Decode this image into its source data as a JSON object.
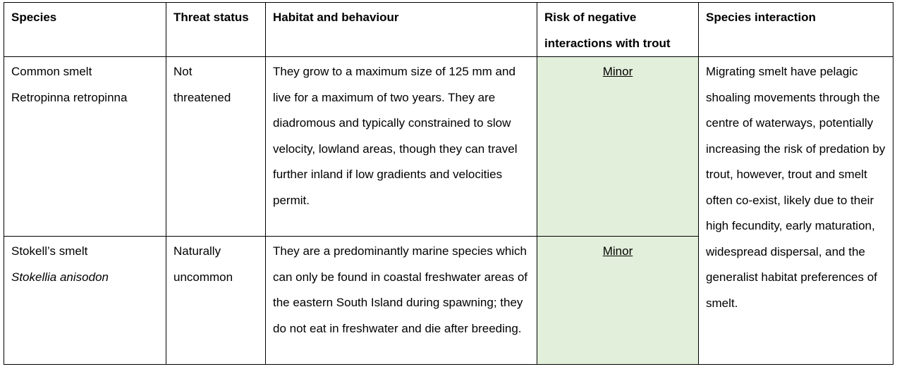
{
  "table": {
    "headers": {
      "species": "Species",
      "threat": "Threat status",
      "habitat": "Habitat and behaviour",
      "risk_line1": "Risk of negative",
      "risk_line2": "interactions with trout",
      "interaction": "Species interaction"
    },
    "rows": [
      {
        "common_name": "Common smelt",
        "scientific_name": "Retropinna retropinna",
        "threat_line1": "Not",
        "threat_line2": "threatened",
        "habitat": "They grow to a maximum size of 125 mm and live for a maximum of two years. They are diadromous and typically constrained to slow velocity, lowland areas, though they can travel further inland if low gradients and velocities permit.",
        "risk": "Minor"
      },
      {
        "common_name": "Stokell’s smelt",
        "scientific_name": "Stokellia anisodon",
        "threat_line1": "Naturally",
        "threat_line2": "uncommon",
        "habitat": "They are a predominantly marine species which can only be found in coastal freshwater areas of the eastern South Island during spawning; they do not eat in freshwater and die after breeding.",
        "risk": "Minor"
      }
    ],
    "interaction": "Migrating smelt have pelagic shoaling movements through the centre of waterways, potentially increasing the risk of predation by trout, however, trout and smelt often co-exist, likely due to their high fecundity, early maturation, widespread dispersal, and the generalist habitat preferences of smelt."
  },
  "colors": {
    "risk_minor_fill": "#e2efda",
    "border": "#000000"
  }
}
